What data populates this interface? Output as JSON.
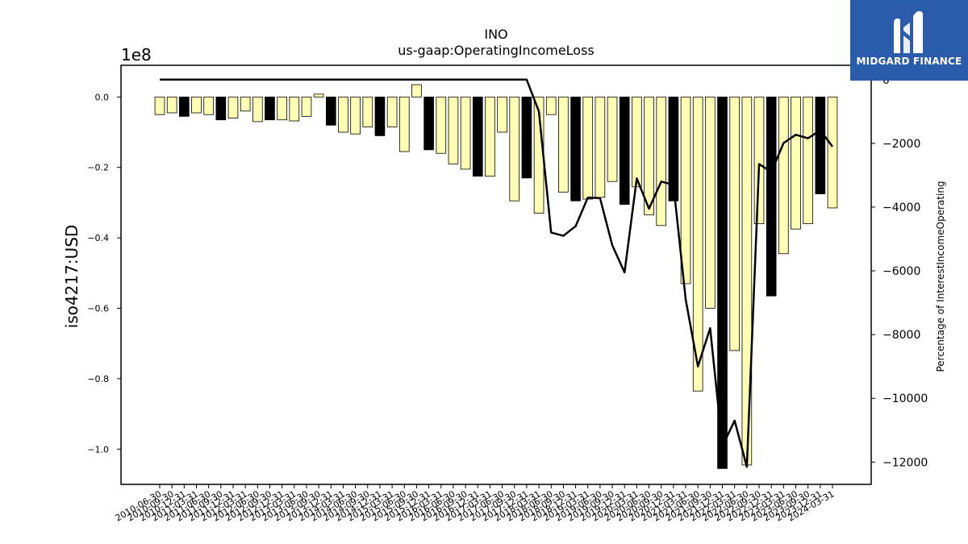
{
  "logo": {
    "text": "MIDGARD FINANCE",
    "background": "#2b5cab"
  },
  "chart_data": {
    "type": "bar",
    "title": "INO",
    "subtitle": "us-gaap:OperatingIncomeLoss",
    "ylabel": "iso4217:USD",
    "y2label": "Percentage of InterestIncomeOperating",
    "y_offset_label": "1e8",
    "ylim": [
      -1.1,
      0.09
    ],
    "y_ticks": [
      "0.0",
      "−0.2",
      "−0.4",
      "−0.6",
      "−0.8",
      "−1.0"
    ],
    "y2lim": [
      -12700,
      450
    ],
    "y2_ticks": [
      "0",
      "−2000",
      "−4000",
      "−6000",
      "−8000",
      "−10000",
      "−12000"
    ],
    "colors": {
      "bar_light": "#ffffb3",
      "bar_dark": "#000000",
      "line": "#000000"
    },
    "categories": [
      "2010-06-30",
      "2010-09-30",
      "2010-12-31",
      "2011-03-31",
      "2011-06-30",
      "2011-09-30",
      "2011-12-31",
      "2012-03-31",
      "2012-06-30",
      "2012-09-30",
      "2012-12-31",
      "2013-03-31",
      "2013-06-30",
      "2013-09-30",
      "2013-12-31",
      "2014-03-31",
      "2014-06-30",
      "2014-09-30",
      "2014-12-31",
      "2015-03-31",
      "2015-06-30",
      "2015-09-30",
      "2015-12-31",
      "2016-03-31",
      "2016-06-30",
      "2016-09-30",
      "2016-12-31",
      "2017-03-31",
      "2017-06-30",
      "2017-09-30",
      "2017-12-31",
      "2018-03-31",
      "2018-06-30",
      "2018-09-30",
      "2018-12-31",
      "2019-03-31",
      "2019-06-30",
      "2019-09-30",
      "2019-12-31",
      "2020-03-31",
      "2020-06-30",
      "2020-09-30",
      "2020-12-31",
      "2021-03-31",
      "2021-06-30",
      "2021-09-30",
      "2021-12-31",
      "2022-03-31",
      "2022-06-30",
      "2022-09-30",
      "2022-12-31",
      "2023-03-31",
      "2023-06-30",
      "2023-09-30",
      "2023-12-31",
      "2024-03-31"
    ],
    "series": [
      {
        "kind": "bar",
        "values": [
          -0.05,
          -0.045,
          -0.055,
          -0.045,
          -0.05,
          -0.065,
          -0.06,
          -0.04,
          -0.07,
          -0.065,
          -0.065,
          -0.068,
          -0.055,
          0.008,
          -0.08,
          -0.1,
          -0.105,
          -0.085,
          -0.11,
          -0.085,
          -0.155,
          0.035,
          -0.15,
          -0.16,
          -0.19,
          -0.205,
          -0.225,
          -0.225,
          -0.1,
          -0.295,
          -0.23,
          -0.33,
          -0.05,
          -0.27,
          -0.295,
          -0.29,
          -0.285,
          -0.24,
          -0.305,
          -0.255,
          -0.335,
          -0.365,
          -0.295,
          -0.53,
          -0.835,
          -0.6,
          -1.055,
          -0.72,
          -1.045,
          -0.36,
          -0.565,
          -0.445,
          -0.375,
          -0.36,
          -0.275,
          -0.315
        ],
        "dark": [
          false,
          false,
          true,
          false,
          false,
          true,
          false,
          false,
          false,
          true,
          false,
          false,
          false,
          false,
          true,
          false,
          false,
          false,
          true,
          false,
          false,
          false,
          true,
          false,
          false,
          false,
          true,
          false,
          false,
          false,
          true,
          false,
          false,
          false,
          true,
          false,
          false,
          false,
          true,
          false,
          false,
          false,
          true,
          false,
          false,
          false,
          true,
          false,
          false,
          false,
          true,
          false,
          false,
          false,
          true,
          false
        ]
      },
      {
        "kind": "line",
        "axis": "right",
        "values": [
          0,
          0,
          0,
          0,
          0,
          0,
          0,
          0,
          0,
          0,
          0,
          0,
          0,
          0,
          0,
          0,
          0,
          0,
          0,
          0,
          0,
          0,
          0,
          0,
          0,
          0,
          0,
          0,
          0,
          0,
          0,
          -1000,
          -4800,
          -4900,
          -4600,
          -3700,
          -3720,
          -5200,
          -6050,
          -3100,
          -4050,
          -3200,
          -3300,
          -6900,
          -9000,
          -7800,
          -11500,
          -10700,
          -12150,
          -2650,
          -2900,
          -1990,
          -1730,
          -1840,
          -1590,
          -2100
        ]
      }
    ]
  }
}
